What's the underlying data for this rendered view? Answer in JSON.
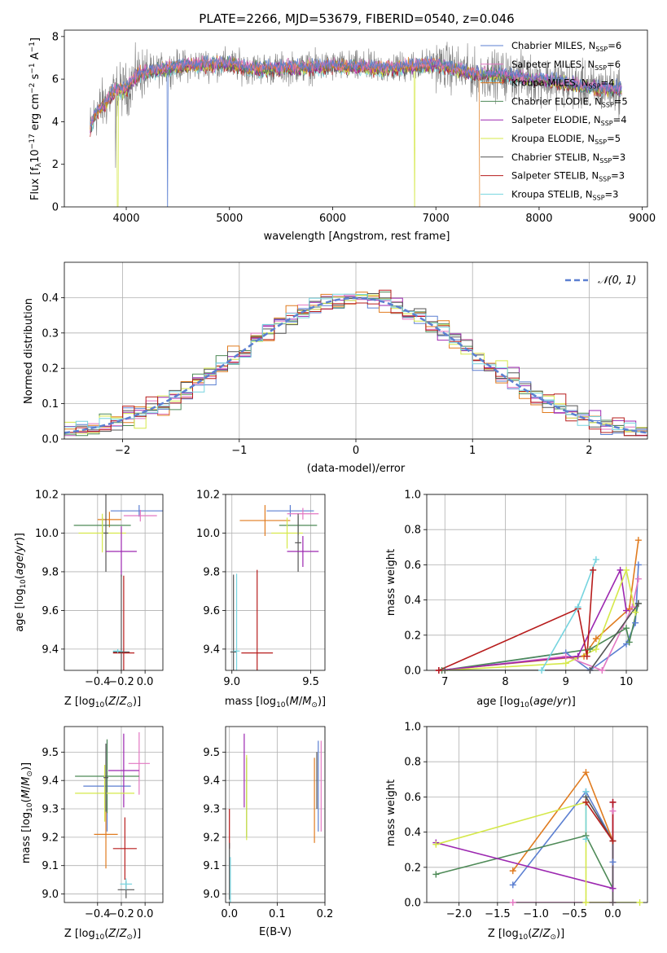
{
  "chart_data": [
    {
      "type": "line",
      "title": "PLATE=2266, MJD=53679, FIBERID=0540, z=0.046",
      "xlabel": "wavelength [Angstrom, rest frame]",
      "ylabel": "Flux [f_λ 10^-17 erg cm^-2 s^-1 A^-1]",
      "xlim": [
        3400,
        9050
      ],
      "ylim": [
        0,
        8.3
      ],
      "xticks": [
        "4000",
        "5000",
        "6000",
        "7000",
        "8000",
        "9000"
      ],
      "yticks": [
        "0",
        "2",
        "4",
        "6",
        "8"
      ],
      "legend_position": "right",
      "series": [
        {
          "name": "Chabrier MILES, N_SSP=6",
          "color": "#5b7fd1"
        },
        {
          "name": "Salpeter MILES, N_SSP=6",
          "color": "#e377c2"
        },
        {
          "name": "Kroupa MILES, N_SSP=4",
          "color": "#e07b1f"
        },
        {
          "name": "Chabrier ELODIE, N_SSP=5",
          "color": "#4e8a57"
        },
        {
          "name": "Salpeter ELODIE, N_SSP=4",
          "color": "#9c27b0"
        },
        {
          "name": "Kroupa ELODIE, N_SSP=5",
          "color": "#d5e84a"
        },
        {
          "name": "Chabrier STELIB, N_SSP=3",
          "color": "#555555"
        },
        {
          "name": "Salpeter STELIB, N_SSP=3",
          "color": "#b71c1c"
        },
        {
          "name": "Kroupa STELIB, N_SSP=3",
          "color": "#76d4df"
        }
      ],
      "spectrum_profile": {
        "x": [
          3650,
          3700,
          3800,
          3900,
          4000,
          4100,
          4300,
          4500,
          4800,
          5000,
          5200,
          5500,
          6000,
          6500,
          7000,
          7400,
          7600,
          8000,
          8500,
          8800
        ],
        "y": [
          3.6,
          4.4,
          4.9,
          5.5,
          5.5,
          6.2,
          6.4,
          6.6,
          6.7,
          6.7,
          6.5,
          6.5,
          6.6,
          6.5,
          6.7,
          6.2,
          6.2,
          6.0,
          5.6,
          5.5
        ]
      }
    },
    {
      "type": "line",
      "xlabel": "(data-model)/error",
      "ylabel": "Normed distribution",
      "xlim": [
        -2.5,
        2.5
      ],
      "ylim": [
        0,
        0.5
      ],
      "xticks": [
        "−2",
        "−1",
        "0",
        "1",
        "2"
      ],
      "yticks": [
        "0.0",
        "0.1",
        "0.2",
        "0.3",
        "0.4"
      ],
      "legend_label": "N(0,1)",
      "legend_position": "top-right",
      "bin_width": 0.1
    },
    {
      "type": "scatter",
      "xlabel": "Z [log10(Z/Z⊙)]",
      "ylabel": "age [log10(age/yr)]",
      "xlim": [
        -0.68,
        0.15
      ],
      "ylim": [
        9.29,
        10.2
      ],
      "xticks": [
        "−0.4",
        "−0.2",
        "0.0"
      ],
      "yticks": [
        "9.4",
        "9.6",
        "9.8",
        "10.0",
        "10.2"
      ],
      "points": [
        {
          "x": -0.05,
          "y": 10.115,
          "xerr": 0.24,
          "yerr": 0.03,
          "color": "#5b7fd1"
        },
        {
          "x": -0.04,
          "y": 10.09,
          "xerr": 0.14,
          "yerr": 0.03,
          "color": "#e377c2"
        },
        {
          "x": -0.3,
          "y": 10.07,
          "xerr": 0.1,
          "yerr": 0.04,
          "color": "#e07b1f"
        },
        {
          "x": -0.36,
          "y": 10.04,
          "xerr": 0.24,
          "yerr": 0.04,
          "color": "#4e8a57"
        },
        {
          "x": -0.36,
          "y": 10.0,
          "xerr": 0.2,
          "yerr": 0.1,
          "color": "#d5e84a"
        },
        {
          "x": -0.33,
          "y": 10.0,
          "xerr": 0.02,
          "yerr": 0.2,
          "color": "#555555"
        },
        {
          "x": -0.2,
          "y": 9.905,
          "xerr": 0.13,
          "yerr": 0.13,
          "color": "#9c27b0"
        },
        {
          "x": -0.18,
          "y": 9.38,
          "xerr": 0.09,
          "yerr": 0.4,
          "color": "#b71c1c"
        },
        {
          "x": -0.2,
          "y": 9.385,
          "xerr": 0.07,
          "yerr": 0.4,
          "color": "#555555"
        },
        {
          "x": -0.23,
          "y": 9.39,
          "xerr": 0.04,
          "yerr": 0.01,
          "color": "#76d4df"
        }
      ]
    },
    {
      "type": "scatter",
      "xlabel": "mass [log10(M/M⊙)]",
      "ylabel": "",
      "xlim": [
        8.96,
        9.59
      ],
      "ylim": [
        9.29,
        10.2
      ],
      "xticks": [
        "9.0",
        "9.5"
      ],
      "yticks": [
        "9.4",
        "9.6",
        "9.8",
        "10.0",
        "10.2"
      ],
      "points": [
        {
          "x": 9.37,
          "y": 10.115,
          "xerr": 0.15,
          "yerr": 0.03,
          "color": "#5b7fd1"
        },
        {
          "x": 9.45,
          "y": 10.1,
          "xerr": 0.1,
          "yerr": 0.03,
          "color": "#e377c2"
        },
        {
          "x": 9.21,
          "y": 10.065,
          "xerr": 0.16,
          "yerr": 0.08,
          "color": "#e07b1f"
        },
        {
          "x": 9.42,
          "y": 10.04,
          "xerr": 0.12,
          "yerr": 0.05,
          "color": "#4e8a57"
        },
        {
          "x": 9.35,
          "y": 10.0,
          "xerr": 0.1,
          "yerr": 0.08,
          "color": "#d5e84a"
        },
        {
          "x": 9.42,
          "y": 9.95,
          "xerr": 0.02,
          "yerr": 0.15,
          "color": "#555555"
        },
        {
          "x": 9.45,
          "y": 9.905,
          "xerr": 0.1,
          "yerr": 0.08,
          "color": "#9c27b0"
        },
        {
          "x": 9.16,
          "y": 9.38,
          "xerr": 0.1,
          "yerr": 0.43,
          "color": "#b71c1c"
        },
        {
          "x": 9.01,
          "y": 9.385,
          "xerr": 0.02,
          "yerr": 0.4,
          "color": "#555555"
        },
        {
          "x": 9.03,
          "y": 9.39,
          "xerr": 0.02,
          "yerr": 0.4,
          "color": "#76d4df"
        }
      ]
    },
    {
      "type": "line",
      "xlabel": "age [log10(age/yr)]",
      "ylabel": "mass weight",
      "xlim": [
        6.7,
        10.35
      ],
      "ylim": [
        0,
        1.0
      ],
      "xticks": [
        "7",
        "8",
        "9",
        "10"
      ],
      "yticks": [
        "0.0",
        "0.2",
        "0.4",
        "0.6",
        "0.8",
        "1.0"
      ],
      "series": [
        {
          "color": "#5b7fd1",
          "x": [
            7.0,
            9.0,
            9.4,
            10.0,
            10.15,
            10.2
          ],
          "y": [
            0.0,
            0.1,
            0.0,
            0.15,
            0.27,
            0.6
          ]
        },
        {
          "color": "#e377c2",
          "x": [
            7.0,
            9.0,
            9.6,
            10.1,
            10.2
          ],
          "y": [
            0.0,
            0.08,
            0.0,
            0.36,
            0.52
          ]
        },
        {
          "color": "#e07b1f",
          "x": [
            6.9,
            9.3,
            9.5,
            10.05,
            10.2
          ],
          "y": [
            0.0,
            0.08,
            0.18,
            0.35,
            0.74
          ]
        },
        {
          "color": "#4e8a57",
          "x": [
            6.95,
            9.4,
            10.0,
            10.05,
            10.2
          ],
          "y": [
            0.0,
            0.12,
            0.24,
            0.16,
            0.38
          ]
        },
        {
          "color": "#9c27b0",
          "x": [
            6.9,
            9.2,
            9.9,
            10.0
          ],
          "y": [
            0.0,
            0.08,
            0.57,
            0.34
          ]
        },
        {
          "color": "#d5e84a",
          "x": [
            7.0,
            9.0,
            9.5,
            10.0,
            10.15
          ],
          "y": [
            0.0,
            0.04,
            0.12,
            0.57,
            0.33
          ]
        },
        {
          "color": "#555555",
          "x": [
            7.0,
            9.4,
            10.2
          ],
          "y": [
            0.0,
            0.0,
            0.38
          ]
        },
        {
          "color": "#b71c1c",
          "x": [
            6.9,
            9.2,
            9.35,
            9.45
          ],
          "y": [
            0.0,
            0.35,
            0.08,
            0.57
          ]
        },
        {
          "color": "#76d4df",
          "x": [
            8.6,
            9.2,
            9.5
          ],
          "y": [
            0.0,
            0.36,
            0.63
          ]
        }
      ]
    },
    {
      "type": "scatter",
      "xlabel": "Z [log10(Z/Z⊙)]",
      "ylabel": "mass [log10(M/M⊙)]",
      "xlim": [
        -0.68,
        0.15
      ],
      "ylim": [
        8.97,
        9.59
      ],
      "xticks": [
        "−0.4",
        "−0.2",
        "0.0"
      ],
      "yticks": [
        "9.0",
        "9.1",
        "9.2",
        "9.3",
        "9.4",
        "9.5"
      ],
      "points": [
        {
          "x": -0.32,
          "y": 9.38,
          "xerr": 0.2,
          "yerr": 0.16,
          "color": "#5b7fd1"
        },
        {
          "x": -0.05,
          "y": 9.46,
          "xerr": 0.09,
          "yerr": 0.11,
          "color": "#e377c2"
        },
        {
          "x": -0.33,
          "y": 9.21,
          "xerr": 0.1,
          "yerr": 0.12,
          "color": "#e07b1f"
        },
        {
          "x": -0.32,
          "y": 9.415,
          "xerr": 0.27,
          "yerr": 0.13,
          "color": "#4e8a57"
        },
        {
          "x": -0.18,
          "y": 9.435,
          "xerr": 0.13,
          "yerr": 0.13,
          "color": "#9c27b0"
        },
        {
          "x": -0.34,
          "y": 9.355,
          "xerr": 0.25,
          "yerr": 0.1,
          "color": "#d5e84a"
        },
        {
          "x": -0.33,
          "y": 9.41,
          "xerr": 0.02,
          "yerr": 0.12,
          "color": "#555555"
        },
        {
          "x": -0.17,
          "y": 9.16,
          "xerr": 0.1,
          "yerr": 0.11,
          "color": "#b71c1c"
        },
        {
          "x": -0.16,
          "y": 9.015,
          "xerr": 0.07,
          "yerr": 0.03,
          "color": "#555555"
        },
        {
          "x": -0.16,
          "y": 9.035,
          "xerr": 0.05,
          "yerr": 0.02,
          "color": "#76d4df"
        }
      ]
    },
    {
      "type": "scatter",
      "xlabel": "E(B-V)",
      "ylabel": "",
      "xlim": [
        -0.008,
        0.2
      ],
      "ylim": [
        8.97,
        9.59
      ],
      "xticks": [
        "0.0",
        "0.1",
        "0.2"
      ],
      "yticks": [
        "9.0",
        "9.1",
        "9.2",
        "9.3",
        "9.4",
        "9.5"
      ],
      "points": [
        {
          "x": 0.186,
          "y": 9.38,
          "yerr": 0.16,
          "color": "#5b7fd1"
        },
        {
          "x": 0.192,
          "y": 9.38,
          "yerr": 0.16,
          "color": "#e377c2"
        },
        {
          "x": 0.178,
          "y": 9.33,
          "yerr": 0.15,
          "color": "#e07b1f"
        },
        {
          "x": 0.036,
          "y": 9.34,
          "yerr": 0.14,
          "color": "#4e8a57"
        },
        {
          "x": 0.031,
          "y": 9.435,
          "yerr": 0.13,
          "color": "#9c27b0"
        },
        {
          "x": 0.036,
          "y": 9.34,
          "yerr": 0.15,
          "color": "#d5e84a"
        },
        {
          "x": 0.183,
          "y": 9.4,
          "yerr": 0.1,
          "color": "#555555"
        },
        {
          "x": 0.0,
          "y": 9.23,
          "yerr": 0.07,
          "color": "#b71c1c"
        },
        {
          "x": 0.0,
          "y": 9.08,
          "yerr": 0.1,
          "color": "#555555"
        },
        {
          "x": 0.002,
          "y": 9.05,
          "yerr": 0.08,
          "color": "#76d4df"
        }
      ]
    },
    {
      "type": "line",
      "xlabel": "Z [log10(Z/Z⊙)]",
      "ylabel": "mass weight",
      "xlim": [
        -2.42,
        0.45
      ],
      "ylim": [
        0,
        1.0
      ],
      "xticks": [
        "−2.0",
        "−1.5",
        "−1.0",
        "−0.5",
        "0.0"
      ],
      "yticks": [
        "0.0",
        "0.2",
        "0.4",
        "0.6",
        "0.8",
        "1.0"
      ],
      "series": [
        {
          "color": "#5b7fd1",
          "x": [
            -1.3,
            -0.35,
            0.0,
            0.0
          ],
          "y": [
            0.1,
            0.63,
            0.35,
            0.23
          ]
        },
        {
          "color": "#e377c2",
          "x": [
            -1.3,
            0.0,
            0.0
          ],
          "y": [
            0.0,
            0.0,
            0.52
          ]
        },
        {
          "color": "#e07b1f",
          "x": [
            -1.3,
            -0.35,
            0.0
          ],
          "y": [
            0.18,
            0.74,
            0.35
          ]
        },
        {
          "color": "#4e8a57",
          "x": [
            -2.3,
            -0.35,
            0.0
          ],
          "y": [
            0.16,
            0.38,
            0.08
          ]
        },
        {
          "color": "#9c27b0",
          "x": [
            -2.3,
            0.0,
            0.0
          ],
          "y": [
            0.34,
            0.08,
            0.57
          ]
        },
        {
          "color": "#d5e84a",
          "x": [
            -2.3,
            -0.35,
            -0.35,
            0.35
          ],
          "y": [
            0.33,
            0.57,
            0.0,
            0.0
          ]
        },
        {
          "color": "#555555",
          "x": [
            -0.35,
            0.0,
            0.0
          ],
          "y": [
            0.6,
            0.35,
            0.0
          ]
        },
        {
          "color": "#b71c1c",
          "x": [
            -0.35,
            0.0,
            0.0
          ],
          "y": [
            0.57,
            0.35,
            0.57
          ]
        },
        {
          "color": "#76d4df",
          "x": [
            -0.35,
            -0.35
          ],
          "y": [
            0.36,
            0.63
          ]
        }
      ]
    }
  ]
}
